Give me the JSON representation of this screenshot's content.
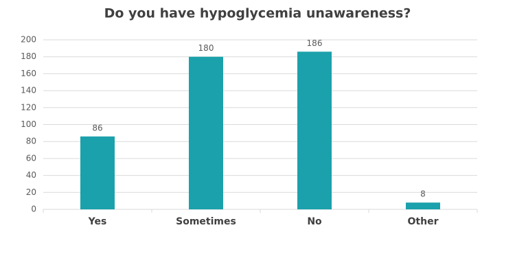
{
  "chart_data": {
    "type": "bar",
    "title": "Do you have hypoglycemia unawareness?",
    "categories": [
      "Yes",
      "Sometimes",
      "No",
      "Other"
    ],
    "values": [
      86,
      180,
      186,
      8
    ],
    "color": "#1ba1ab",
    "ylim": [
      0,
      200
    ],
    "yticks": [
      0,
      20,
      40,
      60,
      80,
      100,
      120,
      140,
      160,
      180,
      200
    ],
    "grid": true
  }
}
